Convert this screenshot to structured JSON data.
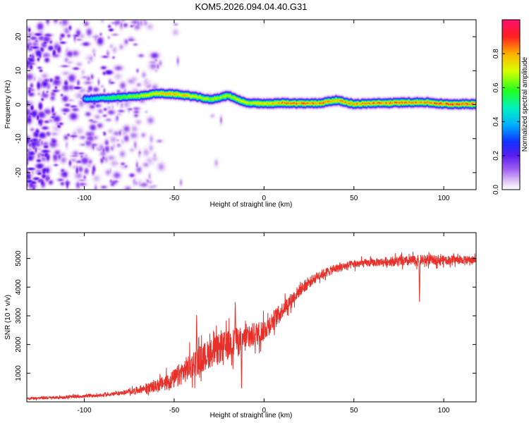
{
  "figure_title": "KOM5.2026.094.04.40.G31",
  "chart_data": [
    {
      "type": "heatmap",
      "name": "spectrogram",
      "xlabel": "Height of straight line (km)",
      "ylabel": "Frequency (Hz)",
      "xlim": [
        -132,
        118
      ],
      "ylim": [
        -25,
        25
      ],
      "xticks": [
        -100,
        -50,
        0,
        50,
        100
      ],
      "yticks": [
        -20,
        -10,
        0,
        10,
        20
      ],
      "colorbar": {
        "label": "Normalized spectral amplitude",
        "range": [
          0,
          1
        ],
        "ticks": [
          0.0,
          0.2,
          0.4,
          0.6,
          0.8
        ]
      },
      "ridge": {
        "description_units": "frequency (Hz) vs height (km)",
        "x": [
          -100,
          -90,
          -80,
          -70,
          -60,
          -50,
          -40,
          -30,
          -20,
          -10,
          0,
          10,
          20,
          30,
          40,
          50,
          60,
          70,
          80,
          90,
          100,
          110,
          118
        ],
        "y": [
          1.8,
          2.0,
          2.3,
          2.6,
          3.4,
          3.2,
          2.6,
          1.6,
          2.8,
          0.6,
          0.4,
          0.6,
          0.5,
          0.5,
          1.4,
          0.3,
          0.5,
          0.6,
          0.8,
          0.8,
          0.3,
          0.3,
          0.3
        ],
        "amp": [
          0.45,
          0.55,
          0.65,
          0.72,
          0.8,
          0.85,
          0.78,
          0.7,
          0.72,
          0.75,
          0.8,
          0.88,
          0.9,
          0.9,
          0.85,
          0.85,
          0.88,
          0.9,
          0.88,
          0.88,
          0.9,
          0.9,
          0.9
        ]
      },
      "noise": {
        "region_x": [
          -132,
          -60
        ],
        "amp_range": [
          0.05,
          0.25
        ]
      }
    },
    {
      "type": "line",
      "name": "snr",
      "xlabel": "Height of straight line (km)",
      "ylabel": "SNR (10 * v/v)",
      "xlim": [
        -132,
        118
      ],
      "ylim": [
        0,
        5900
      ],
      "xticks": [
        -100,
        -50,
        0,
        50,
        100
      ],
      "yticks": [
        1000,
        2000,
        3000,
        4000,
        5000
      ],
      "color": "#e8302a",
      "trend": {
        "x": [
          -132,
          -110,
          -90,
          -75,
          -60,
          -50,
          -40,
          -30,
          -20,
          -10,
          0,
          10,
          20,
          30,
          40,
          50,
          60,
          70,
          80,
          90,
          100,
          110,
          118
        ],
        "y": [
          120,
          160,
          230,
          350,
          550,
          800,
          1300,
          1700,
          2000,
          2200,
          2500,
          3200,
          3900,
          4400,
          4650,
          4800,
          4850,
          4900,
          4900,
          4950,
          4950,
          4950,
          4950
        ]
      },
      "noise_amplitude": {
        "x": [
          -132,
          -80,
          -60,
          -40,
          -20,
          -5,
          10,
          30,
          60,
          85,
          95,
          118
        ],
        "y": [
          80,
          100,
          350,
          900,
          950,
          800,
          500,
          300,
          250,
          350,
          300,
          250
        ]
      },
      "features": [
        {
          "x": -37.5,
          "y": 3150
        },
        {
          "x": -16,
          "y": 3650
        },
        {
          "x": -12.5,
          "y": 400
        },
        {
          "x": 86.5,
          "y": 3450
        }
      ]
    }
  ]
}
